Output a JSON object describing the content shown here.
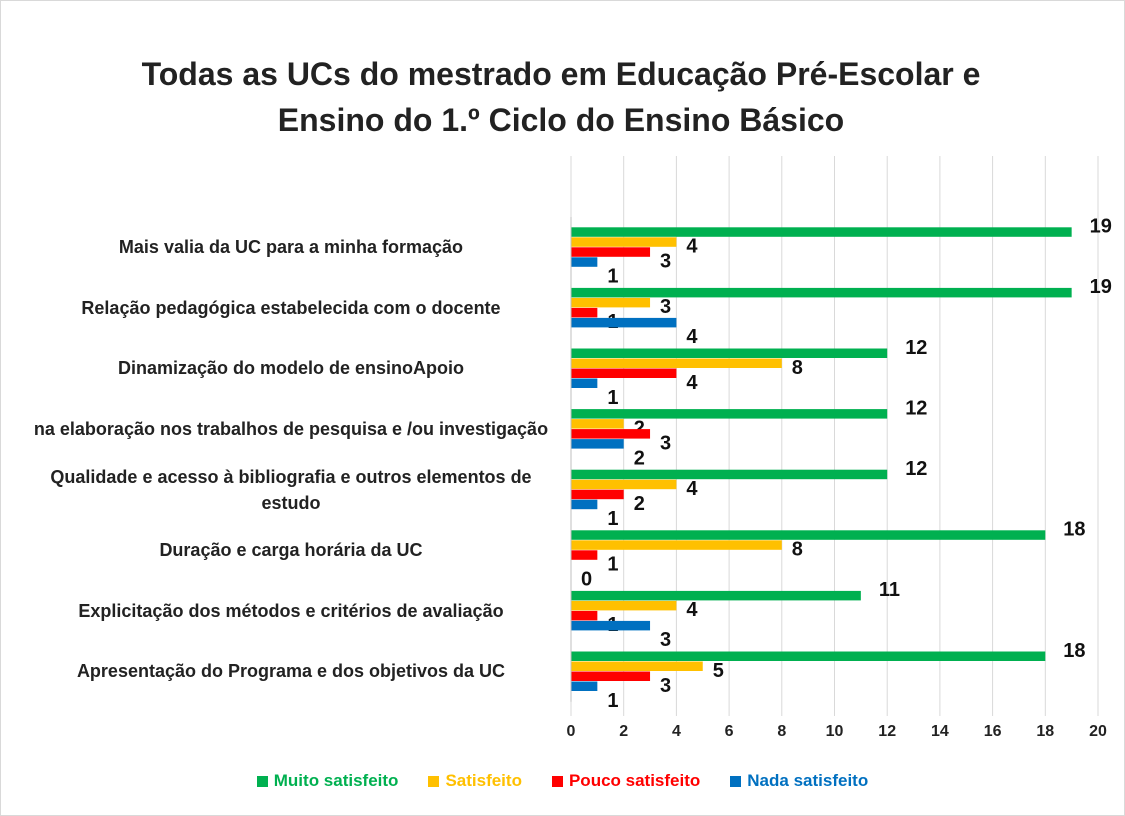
{
  "chart_data": {
    "type": "barh",
    "title": "Todas as UCs do mestrado em Educação Pré-Escolar e Ensino do 1.º Ciclo do Ensino Básico",
    "categories": [
      "Mais valia da UC para a minha formação",
      "Relação pedagógica estabelecida com o docente",
      "Dinamização do modelo de ensinoApoio",
      "na elaboração nos trabalhos de pesquisa e /ou investigação",
      "Qualidade e acesso à bibliografia e outros elementos de estudo",
      "Duração e carga horária da UC",
      "Explicitação dos métodos e critérios de avaliação",
      "Apresentação do Programa e dos objetivos da UC"
    ],
    "series": [
      {
        "name": "Muito satisfeito",
        "color": "#00b050",
        "values": [
          19,
          19,
          12,
          12,
          12,
          18,
          11,
          18
        ]
      },
      {
        "name": "Satisfeito",
        "color": "#ffc000",
        "values": [
          4,
          3,
          8,
          2,
          4,
          8,
          4,
          5
        ]
      },
      {
        "name": "Pouco satisfeito",
        "color": "#ff0000",
        "values": [
          3,
          1,
          4,
          3,
          2,
          1,
          1,
          3
        ]
      },
      {
        "name": "Nada satisfeito",
        "color": "#0070c0",
        "values": [
          1,
          4,
          1,
          2,
          1,
          0,
          3,
          1
        ]
      }
    ],
    "xlim": [
      0,
      20
    ],
    "xticks": [
      0,
      2,
      4,
      6,
      8,
      10,
      12,
      14,
      16,
      18,
      20
    ],
    "grid": true,
    "legend": "bottom"
  }
}
